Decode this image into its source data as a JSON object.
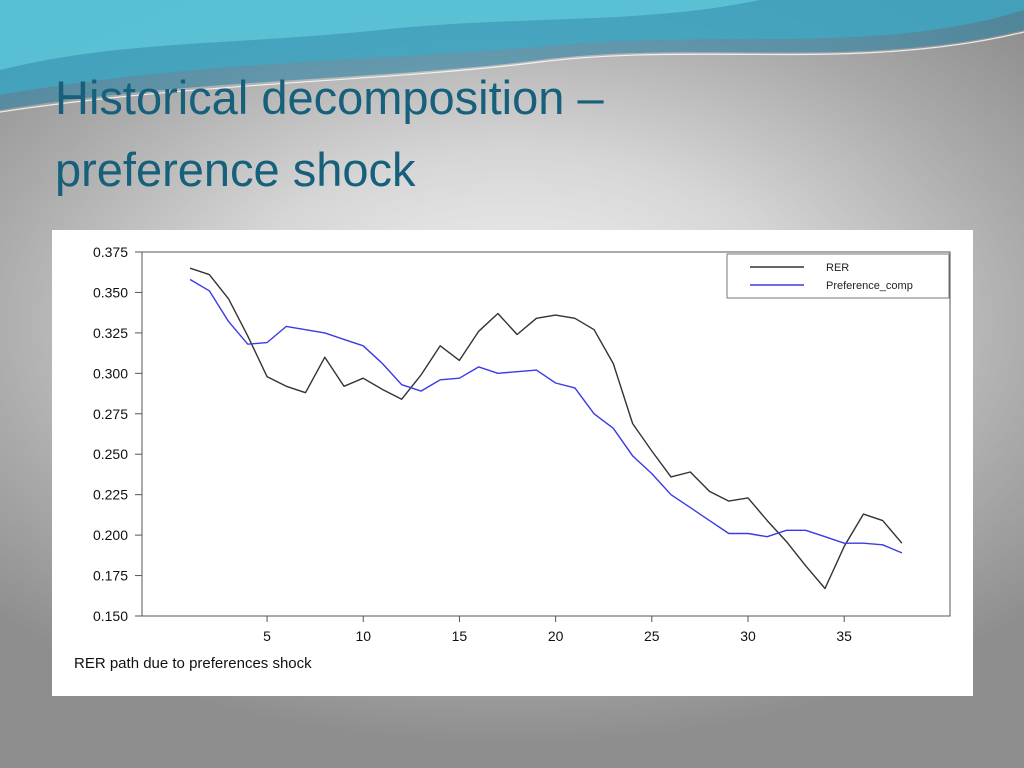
{
  "slide": {
    "title_line1": "Historical decomposition –",
    "title_line2": "preference shock",
    "title_color": "#17607c",
    "wave_colors": [
      "#3fa9c6",
      "#5cc3d6",
      "#1f7ea3"
    ]
  },
  "chart_data": {
    "type": "line",
    "title": "",
    "xlabel": "RER path due to preferences shock",
    "ylabel": "",
    "xlim": [
      -1.5,
      40.5
    ],
    "ylim": [
      0.15,
      0.375
    ],
    "xticks": [
      5,
      10,
      15,
      20,
      25,
      30,
      35
    ],
    "yticks": [
      0.15,
      0.175,
      0.2,
      0.225,
      0.25,
      0.275,
      0.3,
      0.325,
      0.35,
      0.375
    ],
    "ytick_labels": [
      "0.150",
      "0.175",
      "0.200",
      "0.225",
      "0.250",
      "0.275",
      "0.300",
      "0.325",
      "0.350",
      "0.375"
    ],
    "grid": false,
    "legend_position": "top-right",
    "x": [
      1,
      2,
      3,
      4,
      5,
      6,
      7,
      8,
      9,
      10,
      11,
      12,
      13,
      14,
      15,
      16,
      17,
      18,
      19,
      20,
      21,
      22,
      23,
      24,
      25,
      26,
      27,
      28,
      29,
      30,
      31,
      32,
      33,
      34,
      35,
      36,
      37,
      38
    ],
    "series": [
      {
        "name": "RER",
        "color": "#333333",
        "values": [
          0.365,
          0.361,
          0.346,
          0.323,
          0.298,
          0.292,
          0.288,
          0.31,
          0.292,
          0.297,
          0.29,
          0.284,
          0.299,
          0.317,
          0.308,
          0.326,
          0.337,
          0.324,
          0.334,
          0.336,
          0.334,
          0.327,
          0.306,
          0.269,
          0.252,
          0.236,
          0.239,
          0.227,
          0.221,
          0.223,
          0.209,
          0.196,
          0.181,
          0.167,
          0.193,
          0.213,
          0.209,
          0.195
        ]
      },
      {
        "name": "Preference_comp",
        "color": "#3a3ae6",
        "values": [
          0.358,
          0.351,
          0.332,
          0.318,
          0.319,
          0.329,
          0.327,
          0.325,
          0.321,
          0.317,
          0.306,
          0.293,
          0.289,
          0.296,
          0.297,
          0.304,
          0.3,
          0.301,
          0.302,
          0.294,
          0.291,
          0.275,
          0.266,
          0.249,
          0.238,
          0.225,
          0.217,
          0.209,
          0.201,
          0.201,
          0.199,
          0.203,
          0.203,
          0.199,
          0.195,
          0.195,
          0.194,
          0.189
        ]
      }
    ]
  }
}
